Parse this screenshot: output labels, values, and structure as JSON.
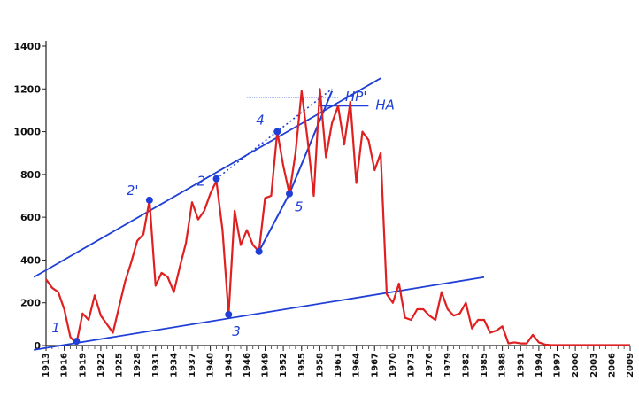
{
  "chart_data": {
    "type": "line",
    "title": "",
    "xlabel": "",
    "ylabel": "",
    "ylim": [
      0,
      1400
    ],
    "xlim": [
      1913,
      2009
    ],
    "yticks": [
      0,
      200,
      400,
      600,
      800,
      1000,
      1200,
      1400
    ],
    "xticks": [
      1913,
      1916,
      1919,
      1922,
      1925,
      1928,
      1931,
      1934,
      1937,
      1940,
      1943,
      1946,
      1949,
      1952,
      1955,
      1958,
      1961,
      1964,
      1967,
      1970,
      1973,
      1976,
      1979,
      1982,
      1985,
      1988,
      1991,
      1994,
      1997,
      2000,
      2003,
      2006,
      2009
    ],
    "grid": false,
    "series": [
      {
        "color": "#e02020",
        "points": [
          [
            1913,
            310
          ],
          [
            1914,
            270
          ],
          [
            1915,
            250
          ],
          [
            1916,
            170
          ],
          [
            1917,
            40
          ],
          [
            1918,
            10
          ],
          [
            1919,
            150
          ],
          [
            1920,
            120
          ],
          [
            1921,
            235
          ],
          [
            1922,
            140
          ],
          [
            1923,
            100
          ],
          [
            1924,
            60
          ],
          [
            1925,
            180
          ],
          [
            1926,
            300
          ],
          [
            1927,
            390
          ],
          [
            1928,
            490
          ],
          [
            1929,
            520
          ],
          [
            1930,
            680
          ],
          [
            1931,
            280
          ],
          [
            1932,
            340
          ],
          [
            1933,
            320
          ],
          [
            1934,
            250
          ],
          [
            1935,
            370
          ],
          [
            1936,
            480
          ],
          [
            1937,
            670
          ],
          [
            1938,
            590
          ],
          [
            1939,
            630
          ],
          [
            1940,
            710
          ],
          [
            1941,
            770
          ],
          [
            1942,
            540
          ],
          [
            1943,
            145
          ],
          [
            1944,
            630
          ],
          [
            1945,
            470
          ],
          [
            1946,
            540
          ],
          [
            1947,
            470
          ],
          [
            1948,
            440
          ],
          [
            1949,
            690
          ],
          [
            1950,
            700
          ],
          [
            1951,
            1000
          ],
          [
            1952,
            840
          ],
          [
            1953,
            710
          ],
          [
            1954,
            900
          ],
          [
            1955,
            1190
          ],
          [
            1956,
            960
          ],
          [
            1957,
            700
          ],
          [
            1958,
            1200
          ],
          [
            1959,
            880
          ],
          [
            1960,
            1040
          ],
          [
            1961,
            1120
          ],
          [
            1962,
            940
          ],
          [
            1963,
            1140
          ],
          [
            1964,
            760
          ],
          [
            1965,
            1000
          ],
          [
            1966,
            960
          ],
          [
            1967,
            820
          ],
          [
            1968,
            900
          ],
          [
            1969,
            240
          ],
          [
            1970,
            200
          ],
          [
            1971,
            290
          ],
          [
            1972,
            130
          ],
          [
            1973,
            120
          ],
          [
            1974,
            170
          ],
          [
            1975,
            170
          ],
          [
            1976,
            140
          ],
          [
            1977,
            120
          ],
          [
            1978,
            250
          ],
          [
            1979,
            170
          ],
          [
            1980,
            140
          ],
          [
            1981,
            150
          ],
          [
            1982,
            200
          ],
          [
            1983,
            80
          ],
          [
            1984,
            120
          ],
          [
            1985,
            120
          ],
          [
            1986,
            60
          ],
          [
            1987,
            70
          ],
          [
            1988,
            90
          ],
          [
            1989,
            10
          ],
          [
            1990,
            15
          ],
          [
            1991,
            10
          ],
          [
            1992,
            10
          ],
          [
            1993,
            50
          ],
          [
            1994,
            15
          ],
          [
            1995,
            5
          ],
          [
            1996,
            2
          ],
          [
            1997,
            2
          ],
          [
            1998,
            2
          ],
          [
            1999,
            2
          ],
          [
            2000,
            2
          ],
          [
            2001,
            2
          ],
          [
            2002,
            2
          ],
          [
            2003,
            2
          ],
          [
            2004,
            2
          ],
          [
            2005,
            2
          ],
          [
            2006,
            2
          ],
          [
            2007,
            2
          ],
          [
            2008,
            2
          ],
          [
            2009,
            2
          ]
        ]
      }
    ],
    "annotations": {
      "color": "#1f3fd6",
      "trendlines": [
        {
          "style": "solid",
          "from": [
            1911,
            320
          ],
          "to": [
            1968,
            1250
          ]
        },
        {
          "style": "solid",
          "from": [
            1911,
            -20
          ],
          "to": [
            1985,
            320
          ]
        },
        {
          "style": "dotted",
          "from": [
            1941,
            780
          ],
          "to": [
            1960,
            1200
          ]
        }
      ],
      "segments": [
        {
          "from": [
            1948,
            440
          ],
          "to": [
            1953,
            710
          ]
        },
        {
          "from": [
            1953,
            710
          ],
          "to": [
            1960,
            1190
          ]
        }
      ],
      "ha_lines": [
        {
          "label": "HP'",
          "y": 1160,
          "x1": 1946,
          "x2": 1961,
          "style": "thin"
        },
        {
          "label": "HA",
          "y": 1120,
          "x1": 1958,
          "x2": 1966,
          "style": "solid"
        }
      ],
      "points": [
        {
          "label": "1",
          "x": 1918,
          "y": 20,
          "label_dx": -28,
          "label_dy": -10
        },
        {
          "label": "2'",
          "x": 1930,
          "y": 680,
          "label_dx": -26,
          "label_dy": -6
        },
        {
          "label": "2",
          "x": 1941,
          "y": 780,
          "label_dx": -22,
          "label_dy": 8
        },
        {
          "label": "3",
          "x": 1943,
          "y": 145,
          "label_dx": 4,
          "label_dy": 24
        },
        {
          "label": "4",
          "x": 1951,
          "y": 1000,
          "label_dx": -24,
          "label_dy": -8
        },
        {
          "label": "5",
          "x": 1953,
          "y": 710,
          "label_dx": 6,
          "label_dy": 20
        },
        {
          "label": "",
          "x": 1948,
          "y": 440
        }
      ]
    }
  }
}
